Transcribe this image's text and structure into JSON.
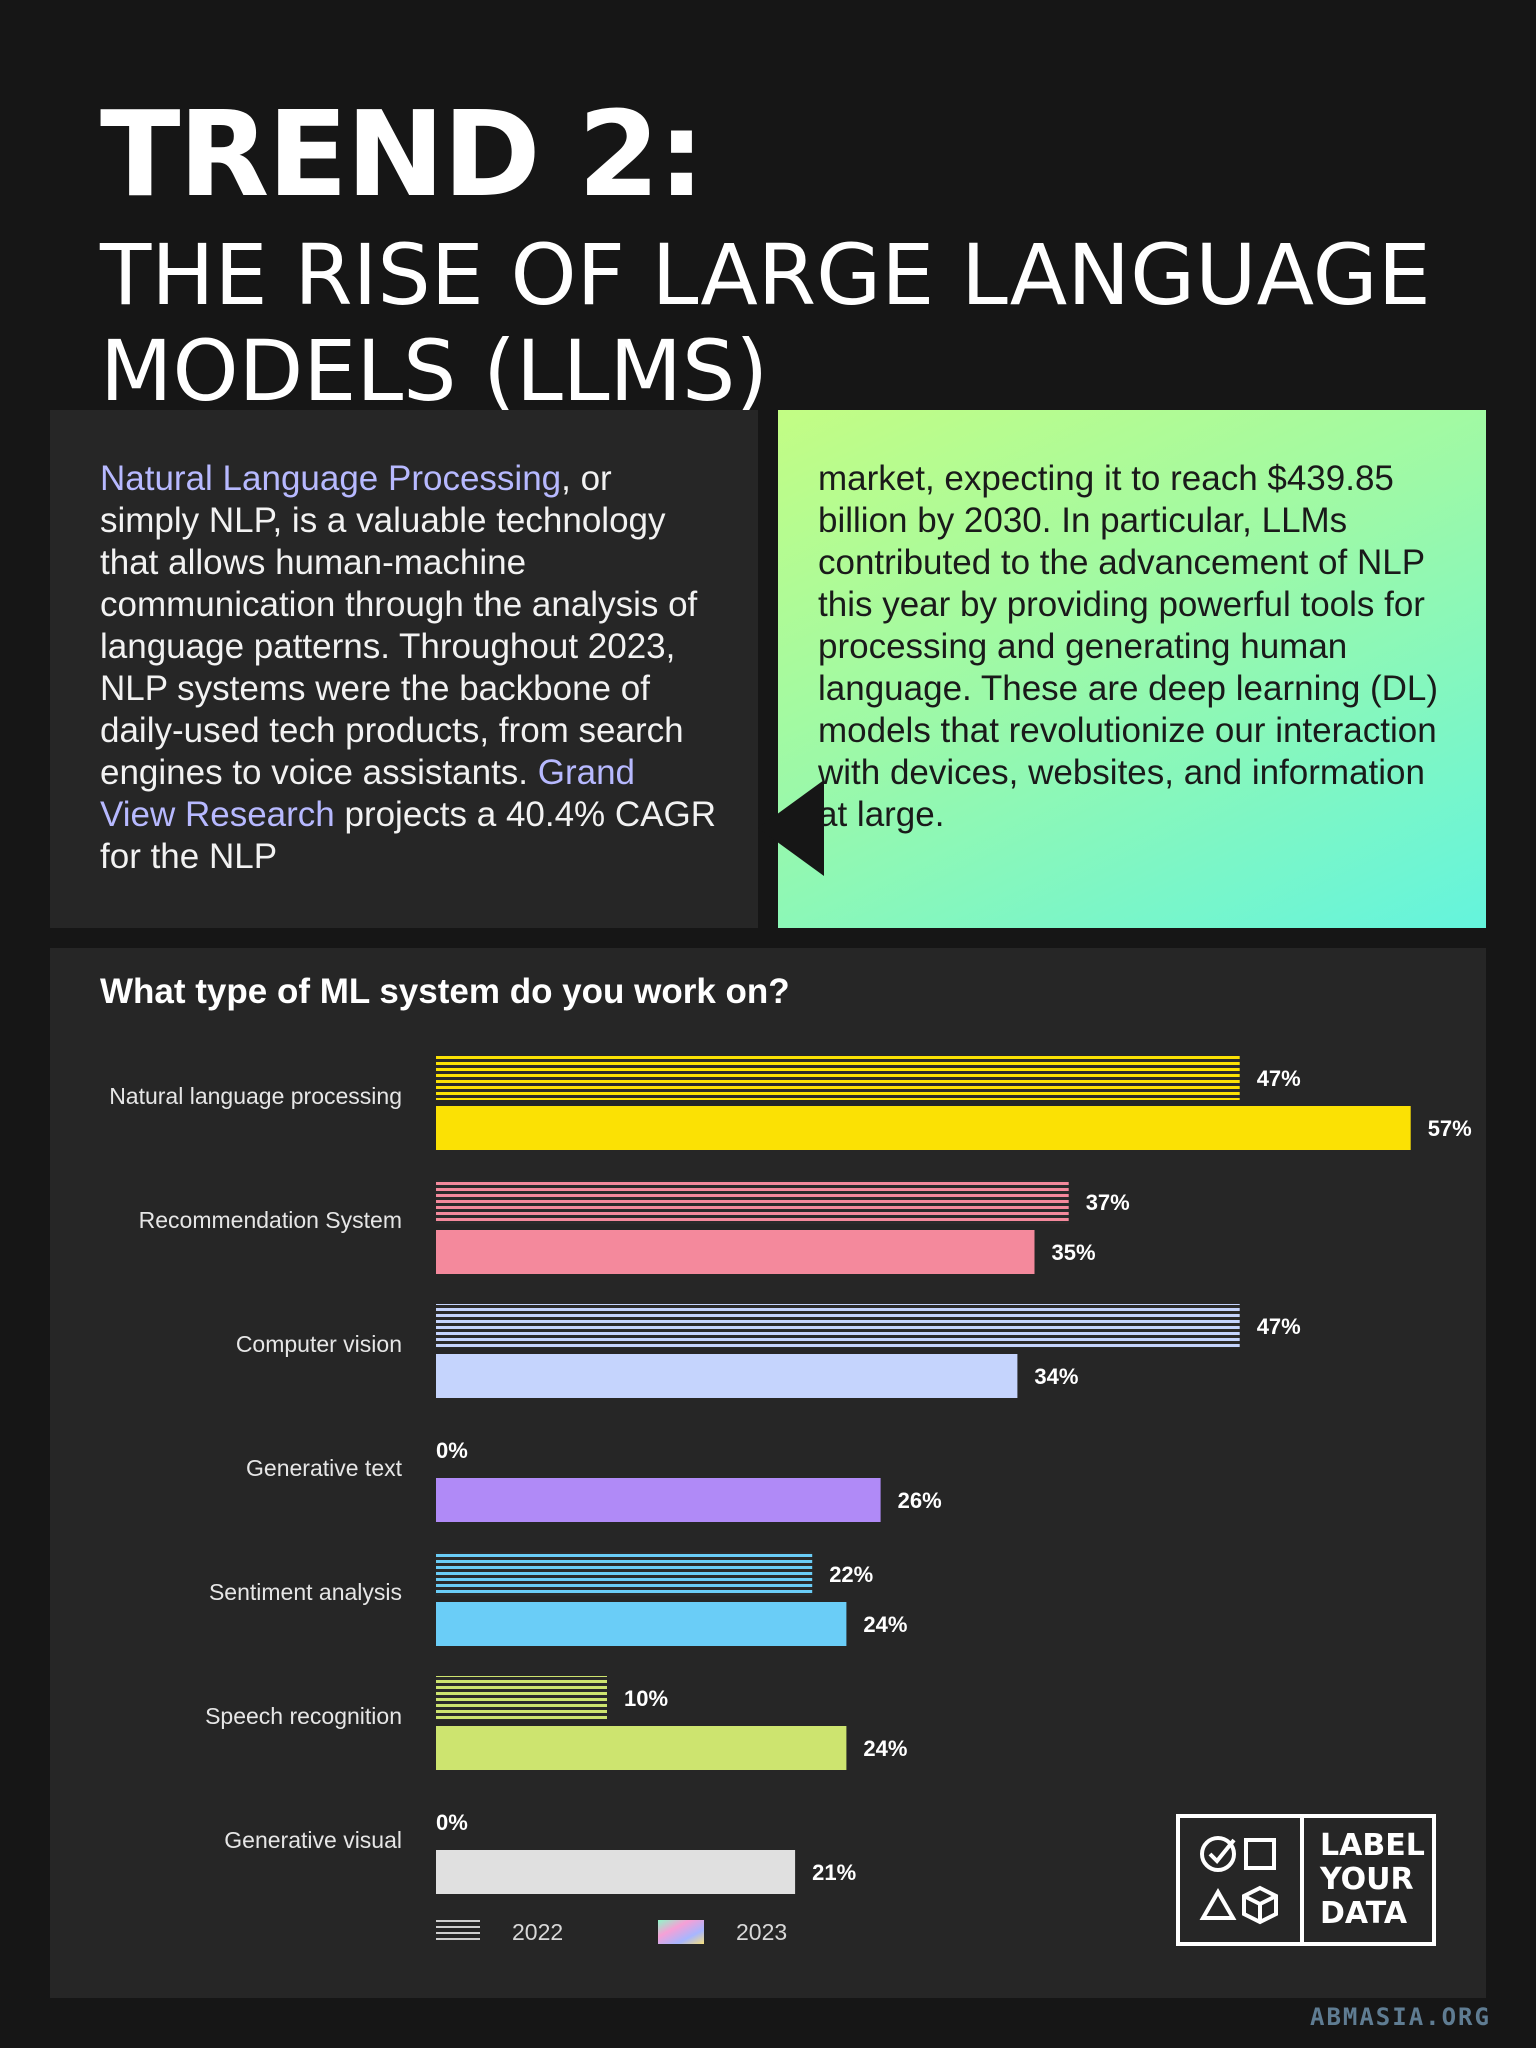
{
  "header": {
    "title": "TREND 2:",
    "subtitle": "THE RISE OF LARGE LANGUAGE MODELS (LLMS)"
  },
  "intro": {
    "left": {
      "link1": "Natural Language Processing",
      "text1": ", or simply NLP, is a valuable technology that allows human-machine communication through the analysis of language patterns. Throughout 2023, NLP systems were the backbone of daily-used tech products, from search engines to voice assistants. ",
      "link2": "Grand View Research",
      "text2": " projects a 40.4% CAGR for the NLP"
    },
    "right": {
      "text": "market, expecting it to reach $439.85 billion by 2030. In particular, LLMs contributed to the advancement of NLP this year by providing powerful tools for processing and generating human language. These are deep learning (DL) models that revolutionize our interaction with devices, websites, and information at large."
    }
  },
  "chart_data": {
    "type": "bar",
    "orientation": "horizontal",
    "title": "What type of ML system do you work on?",
    "categories": [
      "Natural language processing",
      "Recommendation System",
      "Computer vision",
      "Generative text",
      "Sentiment analysis",
      "Speech recognition",
      "Generative visual"
    ],
    "series": [
      {
        "name": "2022",
        "values": [
          47,
          37,
          47,
          0,
          22,
          10,
          0
        ],
        "pattern": "striped"
      },
      {
        "name": "2023",
        "values": [
          57,
          35,
          34,
          26,
          24,
          24,
          21
        ],
        "pattern": "solid"
      }
    ],
    "value_labels_2022": [
      "47%",
      "37%",
      "47%",
      "0%",
      "22%",
      "10%",
      "0%"
    ],
    "value_labels_2023": [
      "57%",
      "35%",
      "34%",
      "26%",
      "24%",
      "24%",
      "21%"
    ],
    "colors": [
      "#fbe104",
      "#f4899c",
      "#c5d4fd",
      "#b08af7",
      "#6acdf7",
      "#cde46f",
      "#e0e0e0"
    ],
    "xlim": [
      0,
      57
    ],
    "legend": {
      "position": "bottom-left",
      "items": [
        "2022",
        "2023"
      ]
    },
    "grid": false
  },
  "logo": {
    "line1": "LABEL",
    "line2": "YOUR",
    "line3": "DATA"
  },
  "watermark": "ABMASIA.ORG",
  "style": {
    "background": "#161616",
    "panel": "#262626",
    "link_color": "#b7b9ff"
  }
}
